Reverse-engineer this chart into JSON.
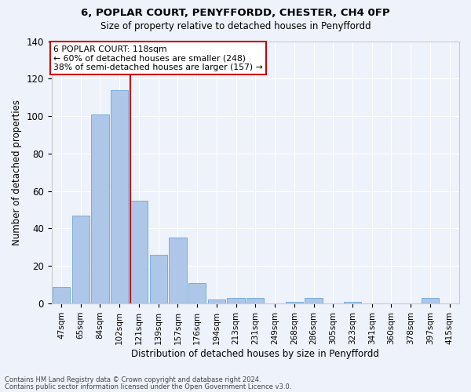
{
  "title": "6, POPLAR COURT, PENYFFORDD, CHESTER, CH4 0FP",
  "subtitle": "Size of property relative to detached houses in Penyffordd",
  "xlabel": "Distribution of detached houses by size in Penyffordd",
  "ylabel": "Number of detached properties",
  "footer1": "Contains HM Land Registry data © Crown copyright and database right 2024.",
  "footer2": "Contains public sector information licensed under the Open Government Licence v3.0.",
  "annotation_line1": "6 POPLAR COURT: 118sqm",
  "annotation_line2": "← 60% of detached houses are smaller (248)",
  "annotation_line3": "38% of semi-detached houses are larger (157) →",
  "property_size": 118,
  "bar_labels": [
    "47sqm",
    "65sqm",
    "84sqm",
    "102sqm",
    "121sqm",
    "139sqm",
    "157sqm",
    "176sqm",
    "194sqm",
    "213sqm",
    "231sqm",
    "249sqm",
    "268sqm",
    "286sqm",
    "305sqm",
    "323sqm",
    "341sqm",
    "360sqm",
    "378sqm",
    "397sqm",
    "415sqm"
  ],
  "bar_values": [
    9,
    47,
    101,
    114,
    55,
    26,
    35,
    11,
    2,
    3,
    3,
    0,
    1,
    3,
    0,
    1,
    0,
    0,
    0,
    3,
    0
  ],
  "bar_color": "#aec6e8",
  "bar_edge_color": "#7aadda",
  "vline_color": "#cc0000",
  "vline_x_index": 4,
  "background_color": "#eef2fb",
  "grid_color": "#ffffff",
  "annotation_box_color": "#ffffff",
  "annotation_box_edge": "#cc0000",
  "ylim": [
    0,
    140
  ],
  "yticks": [
    0,
    20,
    40,
    60,
    80,
    100,
    120,
    140
  ]
}
